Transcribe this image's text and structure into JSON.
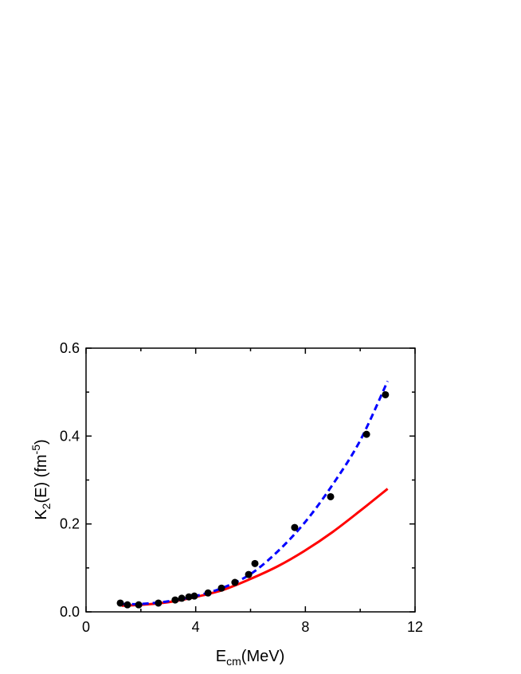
{
  "chart_data": {
    "type": "scatter",
    "xlabel": {
      "main": "E",
      "sub": "cm",
      "rest": "(MeV)"
    },
    "ylabel": {
      "main": "K",
      "sub": "2",
      "mid": "(E) (fm",
      "sup": "-5",
      "end": ")"
    },
    "xlim": [
      0,
      12
    ],
    "ylim": [
      0,
      0.6
    ],
    "xticks": [
      "0",
      "4",
      "8",
      "12"
    ],
    "xtick_values": [
      0,
      4,
      8,
      12
    ],
    "yticks": [
      "0.0",
      "0.2",
      "0.4",
      "0.6"
    ],
    "ytick_values": [
      0,
      0.2,
      0.4,
      0.6
    ],
    "grid": false,
    "series": [
      {
        "kind": "points",
        "color": "#000000",
        "x": [
          1.25,
          1.51,
          1.92,
          2.64,
          3.25,
          3.49,
          3.75,
          3.95,
          4.45,
          4.94,
          5.43,
          5.93,
          6.16,
          7.61,
          8.92,
          10.23,
          10.92
        ],
        "y": [
          0.02,
          0.016,
          0.016,
          0.02,
          0.027,
          0.031,
          0.034,
          0.036,
          0.043,
          0.054,
          0.067,
          0.085,
          0.11,
          0.192,
          0.262,
          0.404,
          0.494
        ]
      },
      {
        "kind": "solid-line",
        "color": "#ff0000",
        "x": [
          1.3,
          2,
          3,
          4,
          5,
          6,
          7,
          8,
          9,
          10,
          11
        ],
        "y": [
          0.014,
          0.016,
          0.022,
          0.034,
          0.05,
          0.075,
          0.104,
          0.14,
          0.182,
          0.23,
          0.28
        ]
      },
      {
        "kind": "dashed-line",
        "color": "#0000ff",
        "x": [
          1.3,
          2,
          3,
          4,
          5,
          6,
          7,
          8,
          9,
          10,
          11
        ],
        "y": [
          0.018,
          0.018,
          0.024,
          0.036,
          0.055,
          0.086,
          0.138,
          0.205,
          0.29,
          0.39,
          0.525
        ]
      }
    ]
  }
}
